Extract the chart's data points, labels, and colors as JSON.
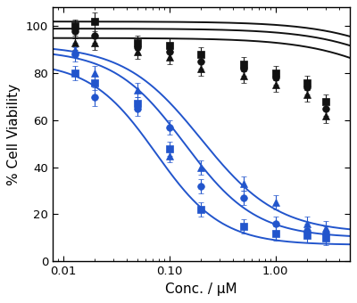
{
  "xlabel": "Conc. / μM",
  "ylabel": "% Cell Viability",
  "xlim": [
    0.008,
    5.0
  ],
  "ylim": [
    0,
    108
  ],
  "yticks": [
    0,
    20,
    40,
    60,
    80,
    100
  ],
  "xticks": [
    0.01,
    0.1,
    1
  ],
  "background_color": "#ffffff",
  "series": [
    {
      "name": "black_square",
      "color": "#111111",
      "marker": "s",
      "x": [
        0.013,
        0.02,
        0.05,
        0.1,
        0.2,
        0.5,
        1.0,
        2.0,
        3.0
      ],
      "y": [
        100,
        102,
        93,
        92,
        88,
        84,
        80,
        76,
        68
      ],
      "yerr": [
        3,
        4,
        3,
        3,
        3,
        3,
        3,
        3,
        3
      ],
      "ec50": 30.0,
      "hill": 1.0,
      "top": 102,
      "bottom": 58
    },
    {
      "name": "black_circle",
      "color": "#111111",
      "marker": "o",
      "x": [
        0.013,
        0.02,
        0.05,
        0.1,
        0.2,
        0.5,
        1.0,
        2.0,
        3.0
      ],
      "y": [
        98,
        96,
        91,
        89,
        85,
        82,
        78,
        74,
        65
      ],
      "yerr": [
        3,
        3,
        3,
        3,
        3,
        3,
        3,
        3,
        3
      ],
      "ec50": 25.0,
      "hill": 1.0,
      "top": 99,
      "bottom": 56
    },
    {
      "name": "black_triangle",
      "color": "#111111",
      "marker": "^",
      "x": [
        0.013,
        0.02,
        0.05,
        0.1,
        0.2,
        0.5,
        1.0,
        2.0,
        3.0
      ],
      "y": [
        93,
        93,
        89,
        87,
        82,
        79,
        75,
        71,
        62
      ],
      "yerr": [
        3,
        3,
        3,
        3,
        3,
        3,
        3,
        3,
        3
      ],
      "ec50": 20.0,
      "hill": 1.0,
      "top": 95,
      "bottom": 53
    },
    {
      "name": "blue_circle",
      "color": "#2255cc",
      "marker": "o",
      "x": [
        0.013,
        0.02,
        0.05,
        0.1,
        0.2,
        0.5,
        1.0,
        2.0,
        3.0
      ],
      "y": [
        88,
        70,
        65,
        57,
        32,
        27,
        16,
        13,
        12
      ],
      "yerr": [
        3,
        4,
        3,
        3,
        3,
        3,
        3,
        3,
        3
      ],
      "ec50": 0.14,
      "hill": 1.3,
      "top": 90,
      "bottom": 10
    },
    {
      "name": "blue_triangle",
      "color": "#2255cc",
      "marker": "^",
      "x": [
        0.013,
        0.02,
        0.05,
        0.1,
        0.2,
        0.5,
        1.0,
        2.0,
        3.0
      ],
      "y": [
        90,
        80,
        73,
        45,
        40,
        33,
        25,
        16,
        14
      ],
      "yerr": [
        3,
        3,
        3,
        3,
        3,
        3,
        3,
        3,
        3
      ],
      "ec50": 0.2,
      "hill": 1.2,
      "top": 92,
      "bottom": 12
    },
    {
      "name": "blue_square",
      "color": "#2255cc",
      "marker": "s",
      "x": [
        0.013,
        0.02,
        0.05,
        0.1,
        0.2,
        0.5,
        1.0,
        2.0,
        3.0
      ],
      "y": [
        80,
        76,
        67,
        48,
        22,
        15,
        12,
        11,
        10
      ],
      "yerr": [
        3,
        3,
        3,
        3,
        3,
        3,
        3,
        3,
        3
      ],
      "ec50": 0.075,
      "hill": 1.4,
      "top": 85,
      "bottom": 7
    }
  ]
}
